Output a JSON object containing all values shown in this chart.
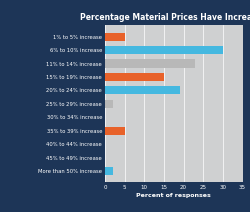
{
  "title": "Percentage Material Prices Have Increased",
  "categories": [
    "1% to 5% increase",
    "6% to 10% increase",
    "11% to 14% increase",
    "15% to 19% increase",
    "20% to 24% increase",
    "25% to 29% increase",
    "30% to 34% increase",
    "35% to 39% increase",
    "40% to 44% increase",
    "45% to 49% increase",
    "More than 50% increase"
  ],
  "values": [
    5,
    30,
    23,
    15,
    19,
    2,
    0,
    5,
    0,
    0,
    2
  ],
  "colors": [
    "#e8622a",
    "#45b8e0",
    "#b8b8b8",
    "#e8622a",
    "#45b8e0",
    "#b8b8b8",
    "#45b8e0",
    "#e8622a",
    "#45b8e0",
    "#45b8e0",
    "#45b8e0"
  ],
  "xlabel": "Percent of responses",
  "xlim": [
    0,
    35
  ],
  "xticks": [
    0,
    5,
    10,
    15,
    20,
    25,
    30,
    35
  ],
  "bg_color": "#1d3557",
  "plot_bg_color": "#cfd0d1",
  "bar_height": 0.6,
  "title_fontsize": 5.5,
  "label_fontsize": 3.8,
  "tick_fontsize": 4.0,
  "xlabel_fontsize": 4.5
}
